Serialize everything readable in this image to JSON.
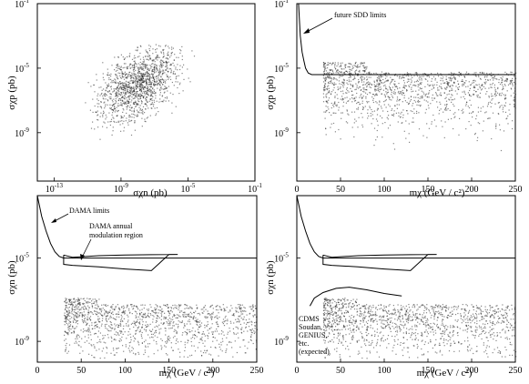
{
  "chart_data": [
    {
      "type": "scatter",
      "panel": "top-left",
      "xlabel": "σχn (pb)",
      "ylabel": "σχp (pb)",
      "x_scale": "log",
      "y_scale": "log",
      "xlim": [
        1e-14,
        0.1
      ],
      "ylim": [
        1e-12,
        0.1
      ],
      "x_ticks": [
        {
          "value": 1e-13,
          "label": "10",
          "exp": "-13"
        },
        {
          "value": 1e-09,
          "label": "10",
          "exp": "-9"
        },
        {
          "value": 1e-05,
          "label": "10",
          "exp": "-5"
        },
        {
          "value": 0.1,
          "label": "10",
          "exp": "-1"
        }
      ],
      "y_ticks": [
        {
          "value": 0.1,
          "label": "10",
          "exp": "-1"
        },
        {
          "value": 1e-05,
          "label": "10",
          "exp": "-5"
        },
        {
          "value": 1e-09,
          "label": "10",
          "exp": "-9"
        }
      ],
      "density_center": {
        "x": 1e-08,
        "y": 1e-06
      }
    },
    {
      "type": "scatter",
      "panel": "top-right",
      "xlabel": "mχ (GeV / c²)",
      "ylabel": "σχp (pb)",
      "x_scale": "linear",
      "y_scale": "log",
      "xlim": [
        0,
        250
      ],
      "ylim": [
        1e-12,
        0.1
      ],
      "x_ticks": [
        0,
        50,
        100,
        150,
        200,
        250
      ],
      "y_ticks": [
        {
          "value": 0.1,
          "label": "10",
          "exp": "-1"
        },
        {
          "value": 1e-05,
          "label": "10",
          "exp": "-5"
        },
        {
          "value": 1e-09,
          "label": "10",
          "exp": "-9"
        }
      ],
      "series": [
        {
          "x": [
            2,
            4,
            6,
            8,
            10,
            13,
            17,
            25,
            40,
            60,
            100,
            150,
            200,
            250
          ],
          "y": [
            0.1,
            0.001,
            0.0001,
            3e-05,
            1e-05,
            5e-06,
            4e-06,
            4e-06,
            4e-06,
            4e-06,
            4e-06,
            4e-06,
            4e-06,
            4e-06
          ]
        }
      ],
      "annotations": [
        {
          "text": "future SDD limits"
        }
      ]
    },
    {
      "type": "scatter",
      "panel": "bottom-left",
      "xlabel": "mχ (GeV / c²)",
      "ylabel": "σχn (pb)",
      "x_scale": "linear",
      "y_scale": "log",
      "xlim": [
        0,
        250
      ],
      "ylim": [
        1e-10,
        0.01
      ],
      "x_ticks": [
        0,
        50,
        100,
        150,
        200,
        250
      ],
      "y_ticks": [
        {
          "value": 1e-05,
          "label": "10",
          "exp": "-5"
        },
        {
          "value": 1e-09,
          "label": "10",
          "exp": "-9"
        }
      ],
      "series": [
        {
          "x": [
            0,
            5,
            10,
            15,
            20,
            25,
            30,
            40,
            60,
            100,
            150,
            200,
            250
          ],
          "y": [
            0.01,
            0.001,
            0.0002,
            5e-05,
            2e-05,
            1.2e-05,
            1e-05,
            1e-05,
            1e-05,
            1e-05,
            1e-05,
            1e-05,
            1e-05
          ]
        },
        {
          "x": [
            30,
            30,
            40,
            70,
            100,
            130,
            150,
            160,
            130,
            100,
            70,
            40,
            30
          ],
          "y": [
            1.4e-05,
            5e-06,
            4.5e-06,
            3.8e-06,
            3e-06,
            2.5e-06,
            1.5e-05,
            1.5e-05,
            1.45e-05,
            1.4e-05,
            1.3e-05,
            1.1e-05,
            1.4e-05
          ]
        }
      ],
      "annotations": [
        {
          "text": "DAMA limits"
        },
        {
          "text": "DAMA annual"
        },
        {
          "text": "modulation region"
        }
      ]
    },
    {
      "type": "scatter",
      "panel": "bottom-right",
      "xlabel": "mχ (GeV / c²)",
      "ylabel": "σχn (pb)",
      "x_scale": "linear",
      "y_scale": "log",
      "xlim": [
        0,
        250
      ],
      "ylim": [
        1e-10,
        0.01
      ],
      "x_ticks": [
        0,
        50,
        100,
        150,
        200,
        250
      ],
      "y_ticks": [
        {
          "value": 1e-05,
          "label": "10",
          "exp": "-5"
        },
        {
          "value": 1e-09,
          "label": "10",
          "exp": "-9"
        }
      ],
      "series": [
        {
          "x": [
            0,
            5,
            10,
            15,
            20,
            25,
            30,
            40,
            60,
            100,
            150,
            200,
            250
          ],
          "y": [
            0.01,
            0.001,
            0.0002,
            5e-05,
            2e-05,
            1.2e-05,
            1e-05,
            1e-05,
            1e-05,
            1e-05,
            1e-05,
            1e-05,
            1e-05
          ]
        },
        {
          "x": [
            30,
            30,
            40,
            70,
            100,
            130,
            150,
            160,
            130,
            100,
            70,
            40,
            30
          ],
          "y": [
            1.4e-05,
            5e-06,
            4.5e-06,
            3.8e-06,
            3e-06,
            2.5e-06,
            1.5e-05,
            1.5e-05,
            1.45e-05,
            1.4e-05,
            1.3e-05,
            1.1e-05,
            1.4e-05
          ]
        },
        {
          "x": [
            15,
            20,
            30,
            45,
            60,
            80,
            100,
            120
          ],
          "y": [
            5e-08,
            1.2e-07,
            2.2e-07,
            3.5e-07,
            4e-07,
            3e-07,
            2e-07,
            1.5e-07
          ]
        }
      ],
      "annotations": [
        {
          "text": "CDMS"
        },
        {
          "text": "Soudan,"
        },
        {
          "text": "GENIUS,"
        },
        {
          "text": "etc."
        },
        {
          "text": "(expected)"
        }
      ]
    }
  ]
}
